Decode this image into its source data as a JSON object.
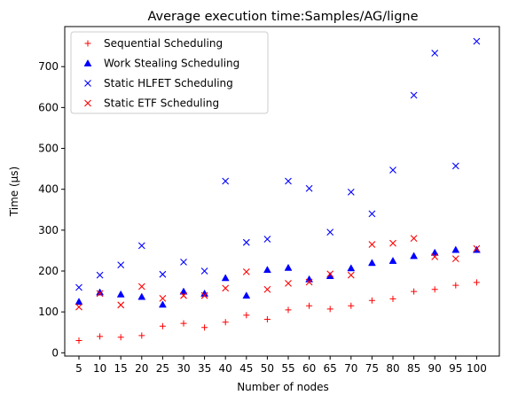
{
  "chart_data": {
    "type": "scatter",
    "title": "Average execution time:Samples/AG/ligne",
    "xlabel": "Number of nodes",
    "ylabel": "Time (µs)",
    "categories": [
      "5",
      "10",
      "15",
      "20",
      "25",
      "30",
      "35",
      "40",
      "45",
      "50",
      "55",
      "60",
      "65",
      "70",
      "75",
      "80",
      "85",
      "90",
      "95",
      "100"
    ],
    "ylim": [
      -8,
      798
    ],
    "yticks": [
      0,
      100,
      200,
      300,
      400,
      500,
      600,
      700
    ],
    "grid": false,
    "legend_position": "top-left",
    "series": [
      {
        "name": "Sequential Scheduling",
        "marker": "plus",
        "color": "#ff0000",
        "values": [
          30,
          40,
          38,
          42,
          65,
          72,
          62,
          75,
          92,
          82,
          105,
          115,
          107,
          115,
          128,
          132,
          150,
          155,
          165,
          172
        ]
      },
      {
        "name": "Work Stealing Scheduling",
        "marker": "triangle",
        "color": "#0000ff",
        "values": [
          125,
          148,
          143,
          137,
          118,
          150,
          145,
          183,
          140,
          203,
          208,
          180,
          188,
          207,
          220,
          225,
          237,
          245,
          252,
          252
        ]
      },
      {
        "name": "Static HLFET Scheduling",
        "marker": "x",
        "color": "#0000ff",
        "values": [
          160,
          190,
          215,
          262,
          192,
          222,
          200,
          420,
          270,
          278,
          420,
          402,
          295,
          393,
          340,
          447,
          630,
          733,
          457,
          762
        ]
      },
      {
        "name": "Static ETF Scheduling",
        "marker": "x",
        "color": "#ff0000",
        "values": [
          112,
          145,
          117,
          162,
          133,
          140,
          140,
          158,
          198,
          155,
          170,
          173,
          193,
          190,
          265,
          268,
          280,
          235,
          230,
          255
        ]
      }
    ]
  }
}
